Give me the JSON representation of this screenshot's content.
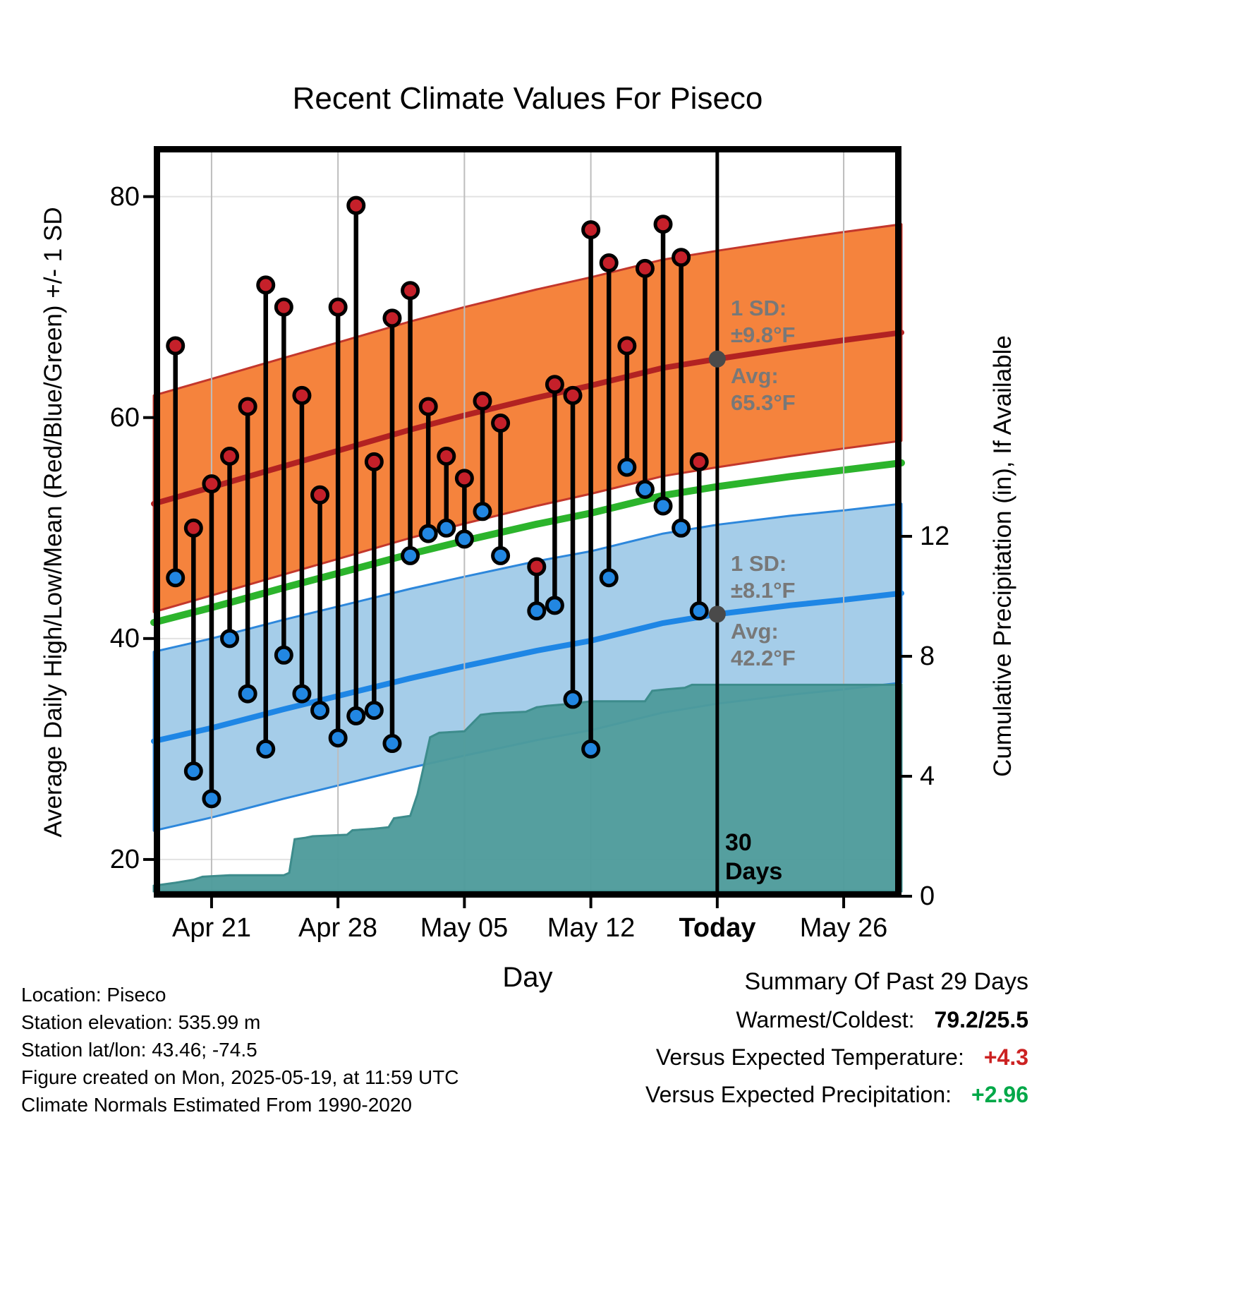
{
  "chart_data": {
    "type": "line",
    "title": "Recent Climate Values For Piseco",
    "x_axis": {
      "label": "Day",
      "ticks": [
        {
          "day": 3,
          "label": "Apr 21"
        },
        {
          "day": 10,
          "label": "Apr 28"
        },
        {
          "day": 17,
          "label": "May 05"
        },
        {
          "day": 24,
          "label": "May 12"
        },
        {
          "day": 31,
          "label": "Today"
        },
        {
          "day": 38,
          "label": "May 26"
        }
      ]
    },
    "y_left": {
      "label": "Average Daily High/Low/Mean (Red/Blue/Green) +/- 1 SD",
      "ticks": [
        80,
        60,
        40,
        20
      ],
      "range": [
        16,
        84
      ]
    },
    "y_right": {
      "label": "Cumulative Precipitation (in), If Available",
      "ticks": [
        12,
        8,
        4,
        0
      ],
      "range": [
        0,
        24
      ]
    },
    "normals": {
      "days": [
        -0.2,
        3,
        7,
        10,
        14,
        17,
        21,
        24,
        28,
        31,
        35,
        38,
        41.2
      ],
      "high_avg": [
        52.2,
        53.7,
        55.6,
        57,
        58.9,
        60.2,
        61.8,
        62.9,
        64.5,
        65.3,
        66.3,
        67,
        67.7
      ],
      "low_avg": [
        30.7,
        31.9,
        33.6,
        34.8,
        36.4,
        37.5,
        38.9,
        39.8,
        41.4,
        42.2,
        43,
        43.5,
        44.1
      ],
      "high_sd": 9.8,
      "low_sd": 8.1,
      "today_high_avg": 65.3,
      "today_low_avg": 42.2
    },
    "daily": [
      {
        "date": "Apr 19",
        "day": 1,
        "high": 66.5,
        "low": 45.5
      },
      {
        "date": "Apr 20",
        "day": 2,
        "high": 50,
        "low": 28
      },
      {
        "date": "Apr 21",
        "day": 3,
        "high": 54,
        "low": 25.5
      },
      {
        "date": "Apr 22",
        "day": 4,
        "high": 56.5,
        "low": 40
      },
      {
        "date": "Apr 23",
        "day": 5,
        "high": 61,
        "low": 35
      },
      {
        "date": "Apr 24",
        "day": 6,
        "high": 72,
        "low": 30
      },
      {
        "date": "Apr 25",
        "day": 7,
        "high": 70,
        "low": 38.5
      },
      {
        "date": "Apr 26",
        "day": 8,
        "high": 62,
        "low": 35
      },
      {
        "date": "Apr 27",
        "day": 9,
        "high": 53,
        "low": 33.5
      },
      {
        "date": "Apr 28",
        "day": 10,
        "high": 70,
        "low": 31
      },
      {
        "date": "Apr 29",
        "day": 11,
        "high": 79.2,
        "low": 33
      },
      {
        "date": "Apr 30",
        "day": 12,
        "high": 56,
        "low": 33.5
      },
      {
        "date": "May 01",
        "day": 13,
        "high": 69,
        "low": 30.5
      },
      {
        "date": "May 02",
        "day": 14,
        "high": 71.5,
        "low": 47.5
      },
      {
        "date": "May 03",
        "day": 15,
        "high": 61,
        "low": 49.5
      },
      {
        "date": "May 04",
        "day": 16,
        "high": 56.5,
        "low": 50
      },
      {
        "date": "May 05",
        "day": 17,
        "high": 54.5,
        "low": 49
      },
      {
        "date": "May 06",
        "day": 18,
        "high": 61.5,
        "low": 51.5
      },
      {
        "date": "May 07",
        "day": 19,
        "high": 59.5,
        "low": 47.5
      },
      {
        "date": "May 09",
        "day": 21,
        "high": 46.5,
        "low": 42.5
      },
      {
        "date": "May 10",
        "day": 22,
        "high": 63,
        "low": 43
      },
      {
        "date": "May 11",
        "day": 23,
        "high": 62,
        "low": 34.5
      },
      {
        "date": "May 12",
        "day": 24,
        "high": 77,
        "low": 30
      },
      {
        "date": "May 13",
        "day": 25,
        "high": 74,
        "low": 45.5
      },
      {
        "date": "May 14",
        "day": 26,
        "high": 66.5,
        "low": 55.5
      },
      {
        "date": "May 15",
        "day": 27,
        "high": 73.5,
        "low": 53.5
      },
      {
        "date": "May 16",
        "day": 28,
        "high": 77.5,
        "low": 52
      },
      {
        "date": "May 17",
        "day": 29,
        "high": 74.5,
        "low": 50
      },
      {
        "date": "May 18",
        "day": 30,
        "high": 56,
        "low": 42.5
      }
    ],
    "precip_cumulative": [
      [
        -0.2,
        0.35
      ],
      [
        1,
        0.45
      ],
      [
        2,
        0.55
      ],
      [
        2.5,
        0.65
      ],
      [
        4,
        0.7
      ],
      [
        7,
        0.7
      ],
      [
        7.3,
        0.78
      ],
      [
        7.6,
        1.9
      ],
      [
        8.2,
        1.95
      ],
      [
        8.6,
        2
      ],
      [
        10.5,
        2.05
      ],
      [
        10.8,
        2.2
      ],
      [
        12,
        2.25
      ],
      [
        12.8,
        2.3
      ],
      [
        13.1,
        2.6
      ],
      [
        14,
        2.68
      ],
      [
        14.4,
        3.4
      ],
      [
        14.7,
        4.2
      ],
      [
        15.1,
        5.3
      ],
      [
        15.6,
        5.45
      ],
      [
        17,
        5.5
      ],
      [
        17.9,
        6.05
      ],
      [
        18.6,
        6.1
      ],
      [
        20.4,
        6.15
      ],
      [
        21,
        6.3
      ],
      [
        21.6,
        6.35
      ],
      [
        23,
        6.42
      ],
      [
        24,
        6.5
      ],
      [
        27,
        6.5
      ],
      [
        27.4,
        6.85
      ],
      [
        28.2,
        6.9
      ],
      [
        29.2,
        6.95
      ],
      [
        29.6,
        7.05
      ],
      [
        41.2,
        7.05
      ]
    ],
    "today_day": 31,
    "annotations": {
      "high_sd_text": "1 SD:\n±9.8°F",
      "high_avg_text": "Avg:\n65.3°F",
      "low_sd_text": "1 SD:\n±8.1°F",
      "low_avg_text": "Avg:\n42.2°F",
      "today_text": "30\nDays"
    },
    "colors": {
      "high_band": "#F5833D",
      "high_band_edge": "#C3372C",
      "high_line": "#B22222",
      "high_dot": "#C5202A",
      "low_band": "#A5CDE9",
      "low_band_edge": "#2D87DB",
      "low_line": "#1E86E5",
      "low_dot": "#2287E2",
      "mean_line": "#2CB42C",
      "precip_fill": "#4E9B9B",
      "precip_edge": "#3D8C8C",
      "annotation_gray": "#787878",
      "marker_gray": "#4A4A4A"
    }
  },
  "footer": {
    "lines": [
      "Location: Piseco",
      "Station elevation: 535.99 m",
      "Station lat/lon: 43.46; -74.5",
      "Figure created on Mon, 2025-05-19, at 11:59 UTC",
      "Climate Normals Estimated From 1990-2020"
    ]
  },
  "summary": {
    "title": "Summary Of Past 29 Days",
    "rows": [
      {
        "label": "Warmest/Coldest:",
        "value": "79.2/25.5",
        "color": "#000000"
      },
      {
        "label": "Versus Expected Temperature:",
        "value": "+4.3",
        "color": "#CC2222"
      },
      {
        "label": "Versus Expected Precipitation:",
        "value": "+2.96",
        "color": "#00A848"
      }
    ]
  }
}
